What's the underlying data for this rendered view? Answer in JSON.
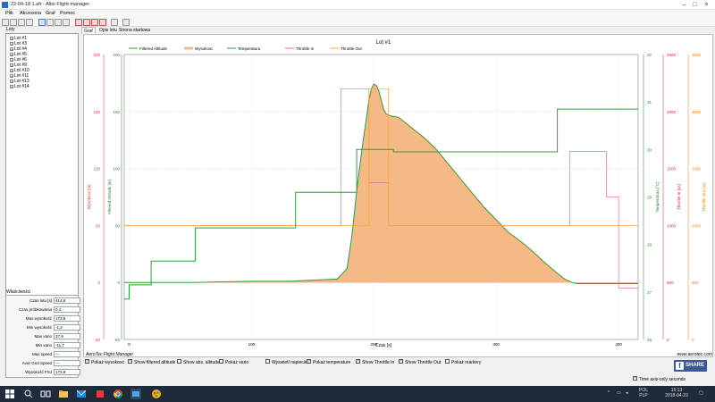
{
  "window": {
    "title": "22-04-18 1.afr - Altio Flight manager"
  },
  "menu": [
    "Plik",
    "Akcesoria",
    "Graf",
    "Pomoc"
  ],
  "toolbar_icons": [
    "open-icon",
    "save-icon",
    "save-as-icon",
    "print-icon",
    "zoom-in-icon",
    "zoom-out-icon",
    "zoom-fit-icon",
    "zoom-reset-icon",
    "export-icon",
    "export-csv-icon",
    "export-kml-icon",
    "export-gpx-icon",
    "refresh-icon",
    "settings-icon"
  ],
  "lots": {
    "title": "Loty",
    "items": [
      "Lot #1",
      "Lot #3",
      "Lot #4",
      "Lot #5",
      "Lot #6",
      "Lot #9",
      "Lot #10",
      "Lot #11",
      "Lot #13",
      "Lot #14"
    ]
  },
  "properties": {
    "title": "Właściwości",
    "rows": [
      {
        "label": "Czas lotu [s]",
        "value": "414,8"
      },
      {
        "label": "Czas próbkowania",
        "value": "0,1"
      },
      {
        "label": "Max wysokość",
        "value": "173,8"
      },
      {
        "label": "Min wysokość",
        "value": "-1,2"
      },
      {
        "label": "Max vario",
        "value": "37,9"
      },
      {
        "label": "Min vario",
        "value": "-11,7"
      },
      {
        "label": "Max speed",
        "value": "---"
      },
      {
        "label": "Avar Gnd Speed",
        "value": "---"
      },
      {
        "label": "Wysokość FSJ",
        "value": "173,8"
      }
    ]
  },
  "tabs": [
    "Graf",
    "Opis lotu",
    "Strona startowa"
  ],
  "chart_data": {
    "type": "line",
    "title": "Lot #1",
    "xlabel": "Czas [s]",
    "xlim": [
      -4,
      416
    ],
    "xticks": [
      "0",
      "100",
      "200",
      "300",
      "400"
    ],
    "legend": [
      "Filtered Altitude",
      "Wysokosc",
      "Temperatura",
      "Throttle In",
      "Throttle Out"
    ],
    "axes": [
      {
        "label": "Wysokosc [m]",
        "color": "#e53935",
        "ticks": [
          "200",
          "150",
          "100",
          "50",
          "0",
          "-50"
        ],
        "lim": [
          -50,
          200
        ]
      },
      {
        "label": "Filtered Altitude [m]",
        "color": "#2e7d32",
        "ticks": [
          "200",
          "150",
          "100",
          "50",
          "0",
          "-50"
        ],
        "lim": [
          -50,
          200
        ]
      },
      {
        "label": "Temperatura [°C]",
        "color": "#2e7d32",
        "ticks": [
          "32",
          "31",
          "30",
          "29",
          "28",
          "27",
          "26"
        ],
        "lim": [
          26,
          32
        ]
      },
      {
        "label": "Throttle In [us]",
        "color": "#d81b60",
        "ticks": [
          "2500",
          "2000",
          "1500",
          "1000",
          "500",
          "0"
        ],
        "lim": [
          0,
          2500
        ]
      },
      {
        "label": "Throttle Out [us]",
        "color": "#f57c00",
        "ticks": [
          "2500",
          "2000",
          "1500",
          "1000",
          "500",
          "0"
        ],
        "lim": [
          0,
          2500
        ]
      }
    ],
    "altitude_series": {
      "x": [
        -4,
        0,
        50,
        100,
        130,
        150,
        170,
        178,
        182,
        186,
        190,
        194,
        196,
        198,
        200,
        202,
        204,
        206,
        208,
        210,
        214,
        220,
        226,
        234,
        240,
        250,
        260,
        270,
        280,
        290,
        300,
        310,
        320,
        330,
        340,
        350,
        356,
        362,
        366,
        380,
        400,
        416
      ],
      "y": [
        0,
        0,
        0,
        1,
        1,
        2,
        3,
        12,
        40,
        80,
        115,
        145,
        160,
        170,
        174,
        173,
        168,
        160,
        152,
        148,
        146,
        145,
        140,
        133,
        128,
        118,
        105,
        92,
        79,
        66,
        55,
        44,
        36,
        27,
        17,
        8,
        3,
        0,
        -1,
        -1,
        -1,
        -1
      ]
    },
    "temperature_series": {
      "x": [
        -4,
        0,
        0,
        18,
        18,
        54,
        54,
        136,
        136,
        186,
        186,
        216,
        216,
        350,
        350,
        416
      ],
      "y": [
        26.85,
        26.85,
        27.15,
        27.15,
        27.65,
        27.65,
        28.35,
        28.35,
        29.1,
        29.1,
        30.0,
        30.0,
        29.95,
        29.95,
        30.85,
        30.85
      ]
    },
    "throttle_in_series": {
      "x": [
        -4,
        173,
        173,
        196,
        196,
        212,
        212,
        360,
        360,
        390,
        390,
        400,
        400,
        416
      ],
      "y": [
        1000,
        1000,
        2200,
        2200,
        1375,
        1375,
        1000,
        1000,
        1650,
        1650,
        1250,
        1250,
        450,
        450
      ]
    },
    "throttle_out_series": {
      "x": [
        -4,
        196,
        196,
        212,
        212,
        416
      ],
      "y": [
        1000,
        1000,
        2200,
        2200,
        1000,
        1000
      ]
    },
    "footer_left": "AeroTec Flight Manager",
    "footer_right": "www.aerotec.com"
  },
  "checkboxes": [
    {
      "label": "Pokaż wysokosc",
      "checked": true
    },
    {
      "label": "Show filtered altitude",
      "checked": true
    },
    {
      "label": "Show abs. altitude",
      "checked": false
    },
    {
      "label": "Pokaż vario",
      "checked": false
    },
    {
      "label": "Wyswietl napiecie",
      "checked": false
    },
    {
      "label": "Pokaż temperature",
      "checked": true
    },
    {
      "label": "Show Throttle In",
      "checked": true
    },
    {
      "label": "Show Throttle Out",
      "checked": true
    },
    {
      "label": "Pokaż markery",
      "checked": false
    }
  ],
  "share": {
    "label": "SHARE"
  },
  "time_axis": {
    "label": "Time axis-only seconds",
    "checked": true
  },
  "taskbar": {
    "icons": [
      "start-icon",
      "search-icon",
      "task-view-icon",
      "file-explorer-icon",
      "chrome-icon",
      "app-icon",
      "flight-manager-icon",
      "paint-icon"
    ],
    "lang": "POL\nPLP",
    "time": "15:13",
    "date": "2018-04-23"
  },
  "colors": {
    "altitude_fill": "#f4b985",
    "altitude_line": "#2e9d3a",
    "temperature": "#2e9d3a",
    "throttle_in": "#e57399",
    "throttle_out": "#f5a742",
    "grid": "#eeeeee"
  }
}
